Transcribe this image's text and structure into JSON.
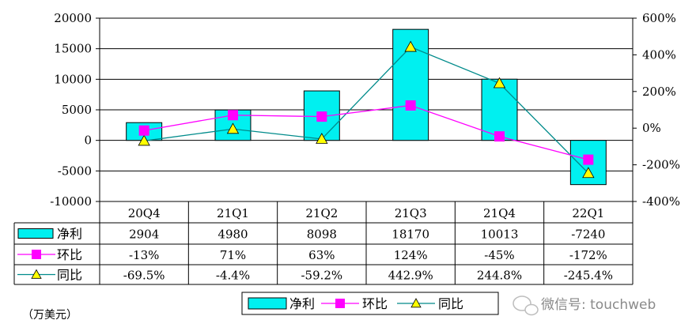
{
  "chart_data": {
    "type": "bar",
    "categories": [
      "20Q4",
      "21Q1",
      "21Q2",
      "21Q3",
      "21Q4",
      "22Q1"
    ],
    "unit_note": "（万美元）",
    "y_left": {
      "min": -10000,
      "max": 20000,
      "step": 5000,
      "ticks": [
        "20000",
        "15000",
        "10000",
        "5000",
        "0",
        "-5000",
        "-10000"
      ]
    },
    "y_right": {
      "min": -400,
      "max": 600,
      "step": 200,
      "ticks": [
        "600%",
        "400%",
        "200%",
        "0%",
        "-200%",
        "-400%"
      ]
    },
    "series": [
      {
        "name": "净利",
        "kind": "bar",
        "axis": "left",
        "values": [
          2904,
          4980,
          8098,
          18170,
          10013,
          -7240
        ],
        "labels": [
          "2904",
          "4980",
          "8098",
          "18170",
          "10013",
          "-7240"
        ]
      },
      {
        "name": "环比",
        "kind": "line",
        "axis": "right",
        "values": [
          -13,
          71,
          63,
          124,
          -45,
          -172
        ],
        "labels": [
          "-13%",
          "71%",
          "63%",
          "124%",
          "-45%",
          "-172%"
        ]
      },
      {
        "name": "同比",
        "kind": "line",
        "axis": "right",
        "values": [
          -69.5,
          -4.4,
          -59.2,
          442.9,
          244.8,
          -245.4
        ],
        "labels": [
          "-69.5%",
          "-4.4%",
          "-59.2%",
          "442.9%",
          "244.8%",
          "-245.4%"
        ]
      }
    ],
    "grid": true,
    "legend_position": "bottom",
    "data_table": true
  },
  "colors": {
    "bar_fill": "#00f0f0",
    "qoq_line": "#ff00ff",
    "yoy_line": "#008b8b",
    "yoy_marker": "#ffff00",
    "grid": "#000000"
  },
  "watermark": {
    "icon": "wechat-icon",
    "text": "微信号: touchweb"
  }
}
